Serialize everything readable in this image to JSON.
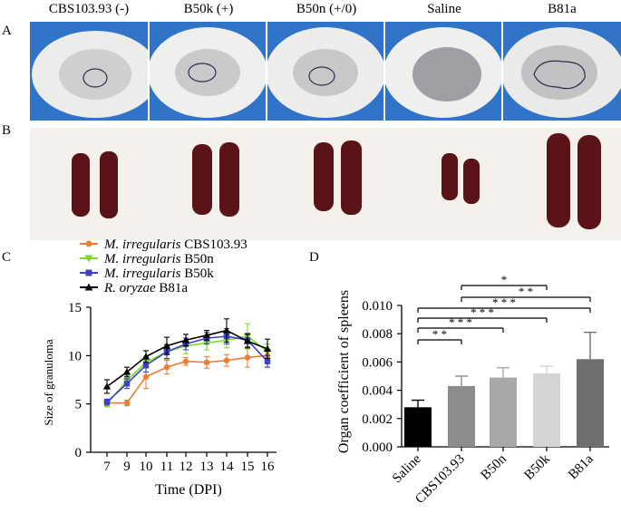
{
  "panels": {
    "a": "A",
    "b": "B",
    "c": "C",
    "d": "D"
  },
  "photo_titles": [
    "CBS103.93 (-)",
    "B50k (+)",
    "B50n (+/0)",
    "Saline",
    "B81a"
  ],
  "legend": [
    {
      "species": "M. irregularis",
      "strain": "CBS103.93",
      "color": "#ED7D31",
      "marker": "circle"
    },
    {
      "species": "M. irregularis",
      "strain": "B50n",
      "color": "#7CDB2A",
      "marker": "triangle-down"
    },
    {
      "species": "M. irregularis",
      "strain": "B50k",
      "color": "#3F3FC8",
      "marker": "square"
    },
    {
      "species": "R. oryzae",
      "strain": "B81a",
      "color": "#000000",
      "marker": "triangle-up"
    }
  ],
  "chart_data": [
    {
      "type": "line",
      "panel": "C",
      "xlabel": "Time (DPI)",
      "ylabel": "Size of granuloma",
      "x": [
        7,
        9,
        10,
        11,
        12,
        13,
        14,
        15,
        16
      ],
      "x_ticks": [
        "7",
        "9",
        "10",
        "11",
        "12",
        "13",
        "14",
        "15",
        "16"
      ],
      "ylim": [
        0,
        15
      ],
      "y_ticks": [
        "0",
        "5",
        "10",
        "15"
      ],
      "series": [
        {
          "name": "M. irregularis CBS103.93",
          "color": "#ED7D31",
          "marker": "circle",
          "values": [
            5.1,
            5.1,
            7.8,
            8.8,
            9.4,
            9.3,
            9.5,
            9.8,
            10.0
          ],
          "errors": [
            0.3,
            0.3,
            1.2,
            0.7,
            0.4,
            0.6,
            0.6,
            1.0,
            1.2
          ]
        },
        {
          "name": "M. irregularis B50n",
          "color": "#7CDB2A",
          "marker": "triangle-down",
          "values": [
            5.0,
            7.4,
            9.3,
            10.4,
            11.0,
            11.3,
            11.6,
            12.0,
            10.4
          ],
          "errors": [
            0.3,
            0.5,
            0.6,
            0.8,
            0.8,
            0.7,
            0.8,
            1.3,
            0.8
          ]
        },
        {
          "name": "M. irregularis B50k",
          "color": "#3F3FC8",
          "marker": "square",
          "values": [
            5.2,
            7.1,
            9.0,
            10.4,
            11.2,
            11.8,
            12.0,
            11.6,
            9.4
          ],
          "errors": [
            0.3,
            0.5,
            0.7,
            0.7,
            0.6,
            0.6,
            0.8,
            0.7,
            0.6
          ]
        },
        {
          "name": "R. oryzae B81a",
          "color": "#000000",
          "marker": "triangle-up",
          "values": [
            6.8,
            8.3,
            9.9,
            11.0,
            11.6,
            12.1,
            12.6,
            11.5,
            10.7
          ],
          "errors": [
            0.7,
            0.5,
            0.6,
            0.9,
            0.6,
            0.5,
            1.2,
            0.7,
            1.0
          ]
        }
      ]
    },
    {
      "type": "bar",
      "panel": "D",
      "ylabel": "Organ coefficient of spleens",
      "categories": [
        "Saline",
        "CBS103.93",
        "B50n",
        "B50k",
        "B81a"
      ],
      "values": [
        0.0028,
        0.0043,
        0.0049,
        0.0052,
        0.0062
      ],
      "errors": [
        0.0005,
        0.0007,
        0.0007,
        0.0005,
        0.0019
      ],
      "colors": [
        "#000000",
        "#8C8C8C",
        "#A8A8A8",
        "#D4D4D4",
        "#6E6E6E"
      ],
      "ylim": [
        0,
        0.01
      ],
      "y_ticks": [
        "0.000",
        "0.002",
        "0.004",
        "0.006",
        "0.008",
        "0.010"
      ],
      "significance": [
        {
          "from": "Saline",
          "to": "CBS103.93",
          "label": "* *"
        },
        {
          "from": "Saline",
          "to": "B50n",
          "label": "* * *"
        },
        {
          "from": "Saline",
          "to": "B50k",
          "label": "* * *"
        },
        {
          "from": "Saline",
          "to": "B81a",
          "label": "* * *"
        },
        {
          "from": "CBS103.93",
          "to": "B81a",
          "label": "* *"
        },
        {
          "from": "CBS103.93",
          "to": "B50k",
          "label": "*"
        }
      ]
    }
  ]
}
